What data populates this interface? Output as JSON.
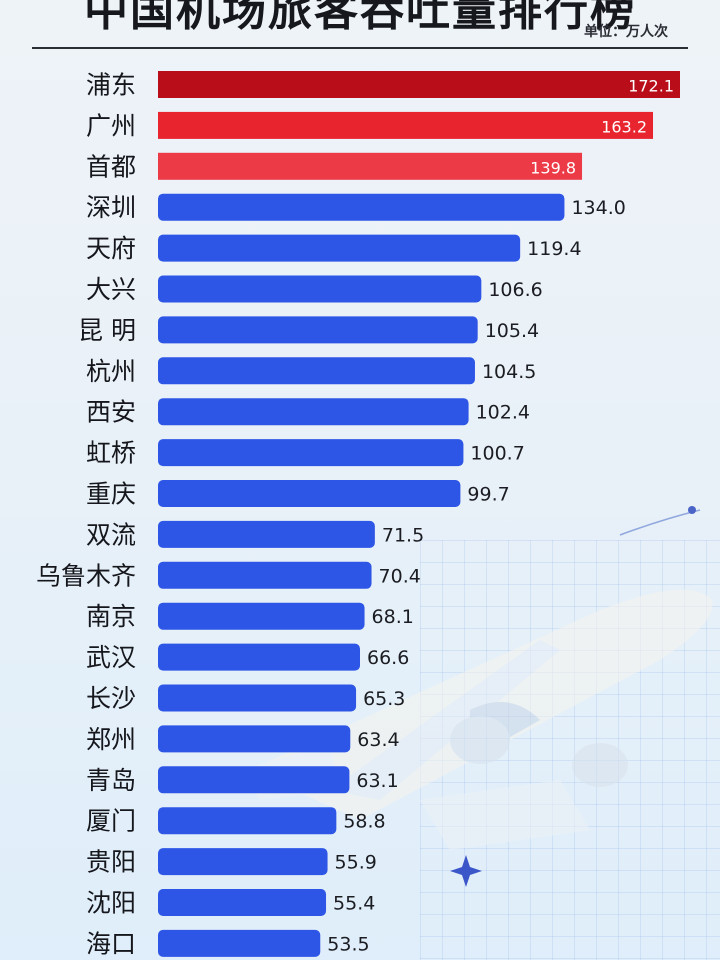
{
  "header": {
    "title": "中国机场旅客吞吐量排行榜",
    "unit": "单位：万人次"
  },
  "colors": {
    "rank1": "#b90e1a",
    "rank2": "#e8242f",
    "rank3": "#ec3b47",
    "default": "#2e56e6"
  },
  "chart_data": {
    "type": "bar",
    "orientation": "horizontal",
    "title": "中国机场旅客吞吐量排行榜",
    "unit": "单位：万人次",
    "categories": [
      "浦东",
      "广州",
      "首都",
      "深圳",
      "天府",
      "大兴",
      "昆 明",
      "杭州",
      "西安",
      "虹桥",
      "重庆",
      "双流",
      "乌鲁木齐",
      "南京",
      "武汉",
      "长沙",
      "郑州",
      "青岛",
      "厦门",
      "贵阳",
      "沈阳",
      "海口"
    ],
    "values": [
      172.1,
      163.2,
      139.8,
      134.0,
      119.4,
      106.6,
      105.4,
      104.5,
      102.4,
      100.7,
      99.7,
      71.5,
      70.4,
      68.1,
      66.6,
      65.3,
      63.4,
      63.1,
      58.8,
      55.9,
      55.4,
      53.5
    ],
    "value_labels": [
      "172.1",
      "163.2",
      "139.8",
      "134.0",
      "119.4",
      "106.6",
      "105.4",
      "104.5",
      "102.4",
      "100.7",
      "99.7",
      "71.5",
      "70.4",
      "68.1",
      "66.6",
      "65.3",
      "63.4",
      "63.1",
      "58.8",
      "55.9",
      "55.4",
      "53.5"
    ],
    "xlim": [
      0,
      172.1
    ],
    "grid": false,
    "legend": "none"
  }
}
